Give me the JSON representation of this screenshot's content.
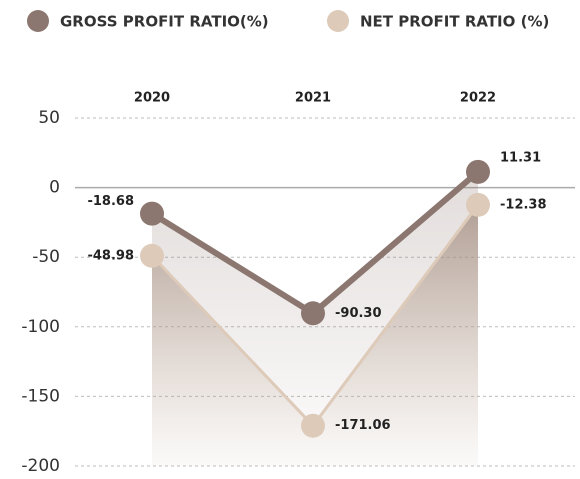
{
  "chart_data": {
    "type": "line",
    "categories": [
      "2020",
      "2021",
      "2022"
    ],
    "series": [
      {
        "name": "GROSS PROFIT RATIO(%)",
        "color": "#8c7770",
        "values": [
          -18.68,
          -90.3,
          11.31
        ],
        "value_labels": [
          "-18.68",
          "-90.30",
          "11.31"
        ]
      },
      {
        "name": "NET PROFIT RATIO (%)",
        "color": "#ddcab9",
        "values": [
          -48.98,
          -171.06,
          -12.38
        ],
        "value_labels": [
          "-48.98",
          "-171.06",
          "-12.38"
        ]
      }
    ],
    "ylim": [
      -200,
      50
    ],
    "yticks": [
      -200,
      -150,
      -100,
      -50,
      0,
      50
    ],
    "grid": true
  }
}
